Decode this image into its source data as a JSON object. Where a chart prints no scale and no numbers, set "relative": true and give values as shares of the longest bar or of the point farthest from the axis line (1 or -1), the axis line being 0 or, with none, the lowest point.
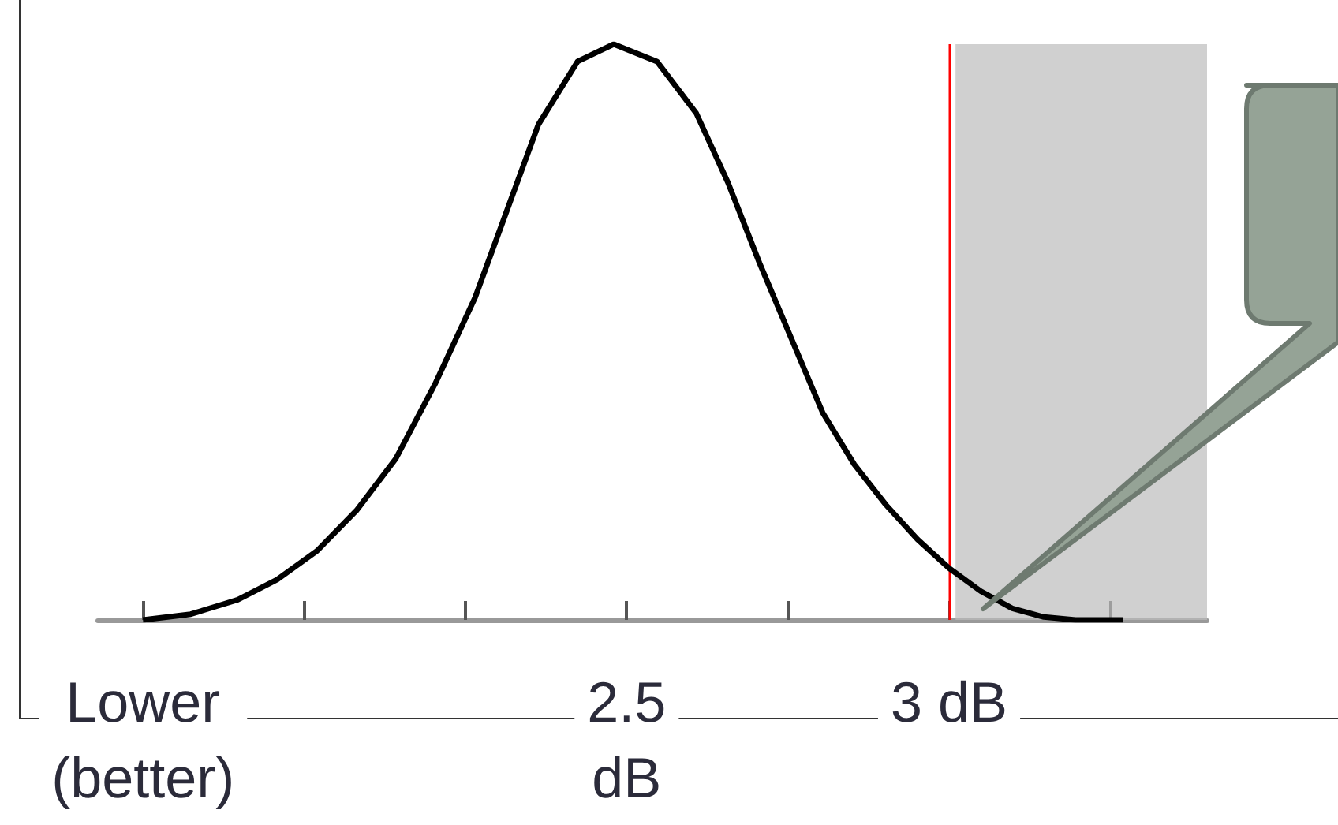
{
  "chart_data": {
    "type": "line",
    "relative": true,
    "x": [
      1.75,
      1.824,
      1.897,
      1.958,
      2.02,
      2.081,
      2.142,
      2.203,
      2.265,
      2.314,
      2.363,
      2.424,
      2.48,
      2.547,
      2.608,
      2.657,
      2.706,
      2.755,
      2.804,
      2.853,
      2.902,
      2.951,
      3.0,
      3.049,
      3.098,
      3.147,
      3.196,
      3.27
    ],
    "series": [
      {
        "color": "#000000",
        "values": [
          0,
          0.01,
          0.035,
          0.07,
          0.12,
          0.19,
          0.28,
          0.41,
          0.56,
          0.71,
          0.86,
          0.97,
          1,
          0.97,
          0.88,
          0.76,
          0.62,
          0.49,
          0.36,
          0.27,
          0.2,
          0.14,
          0.09,
          0.05,
          0.02,
          0.005,
          0,
          0
        ]
      }
    ],
    "xlim": [
      1.68,
      3.4
    ],
    "xticks": [
      {
        "value": 1.75,
        "label": "Lower\n(better)"
      },
      {
        "value": 2.0,
        "label": null
      },
      {
        "value": 2.25,
        "label": null
      },
      {
        "value": 2.5,
        "label": "2.5\ndB"
      },
      {
        "value": 2.75,
        "label": null
      },
      {
        "value": 3.0,
        "label": "3 dB"
      },
      {
        "value": 3.25,
        "label": null
      }
    ],
    "ref_lines": [
      {
        "axis": "x",
        "value": 3.0,
        "color": "#ff0000"
      }
    ],
    "bands": [
      {
        "axis": "x",
        "from": 3.01,
        "to": 3.4,
        "color": "#bcbcbc"
      }
    ],
    "grid": false,
    "marker": "none",
    "line_style": "solid"
  }
}
